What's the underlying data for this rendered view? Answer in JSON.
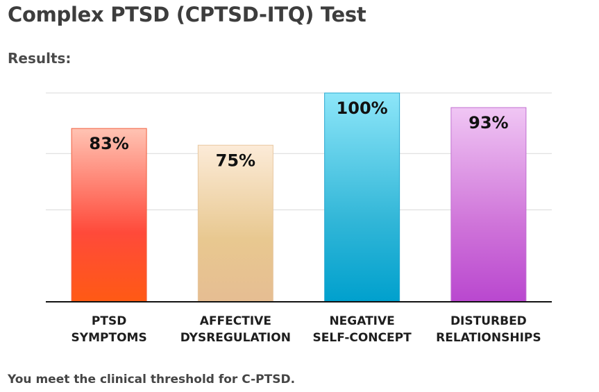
{
  "page": {
    "title": "Complex PTSD (CPTSD-ITQ) Test",
    "results_heading": "Results:",
    "threshold_message": "You meet the clinical threshold for C-PTSD."
  },
  "chart_data": {
    "type": "bar",
    "categories": [
      [
        "PTSD",
        "SYMPTOMS"
      ],
      [
        "AFFECTIVE",
        "DYSREGULATION"
      ],
      [
        "NEGATIVE",
        "SELF-CONCEPT"
      ],
      [
        "DISTURBED",
        "RELATIONSHIPS"
      ]
    ],
    "values": [
      83,
      75,
      100,
      93
    ],
    "value_labels": [
      "83%",
      "75%",
      "100%",
      "93%"
    ],
    "ylim": [
      0,
      100
    ],
    "grid": true,
    "colors": [
      {
        "top": "#ffc3b3",
        "mid": "#ff4a3a",
        "bottom": "#ff5a14",
        "stroke": "#f06040"
      },
      {
        "top": "#fcebd8",
        "mid": "#e8c890",
        "bottom": "#e6bd92",
        "stroke": "#e8c8a0"
      },
      {
        "top": "#8de6f9",
        "mid": "#33b7d8",
        "bottom": "#00a0cd",
        "stroke": "#2aa8d0"
      },
      {
        "top": "#f0c6f4",
        "mid": "#cf74d9",
        "bottom": "#b947cf",
        "stroke": "#c070d0"
      }
    ]
  }
}
